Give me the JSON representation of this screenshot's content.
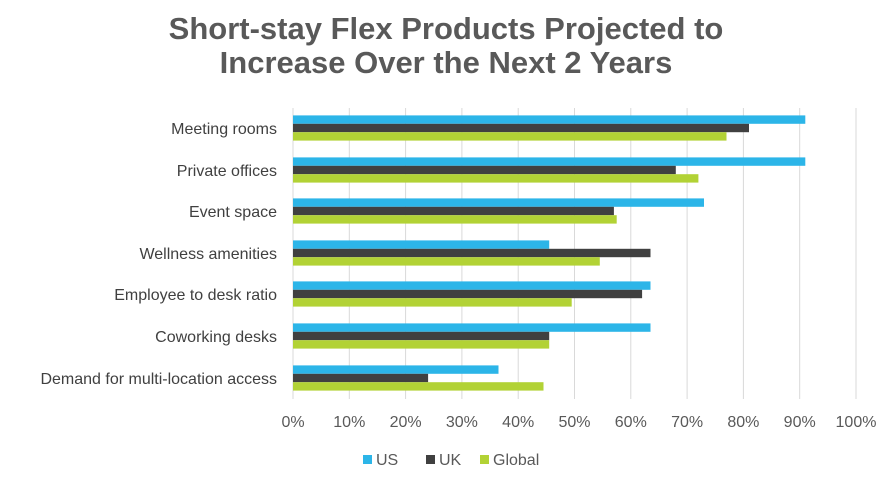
{
  "chart_data": {
    "type": "bar",
    "orientation": "horizontal",
    "title": "Short-stay Flex Products Projected to Increase Over the Next 2 Years",
    "title_lines": [
      "Short-stay Flex Products Projected to",
      "Increase Over the Next 2 Years"
    ],
    "categories": [
      "Meeting rooms",
      "Private offices",
      "Event space",
      "Wellness amenities",
      "Employee to desk ratio",
      "Coworking desks",
      "Demand for multi-location access"
    ],
    "series": [
      {
        "name": "US",
        "color": "#2CB5E8",
        "values": [
          91,
          91,
          73,
          45.5,
          63.5,
          63.5,
          36.5
        ]
      },
      {
        "name": "UK",
        "color": "#404040",
        "values": [
          81,
          68,
          57,
          63.5,
          62,
          45.5,
          24
        ]
      },
      {
        "name": "Global",
        "color": "#B2D235",
        "values": [
          77,
          72,
          57.5,
          54.5,
          49.5,
          45.5,
          44.5
        ]
      }
    ],
    "xlim": [
      0,
      100
    ],
    "xticks": [
      "0%",
      "10%",
      "20%",
      "30%",
      "40%",
      "50%",
      "60%",
      "70%",
      "80%",
      "90%",
      "100%"
    ],
    "grid": true,
    "legend_position": "bottom"
  }
}
